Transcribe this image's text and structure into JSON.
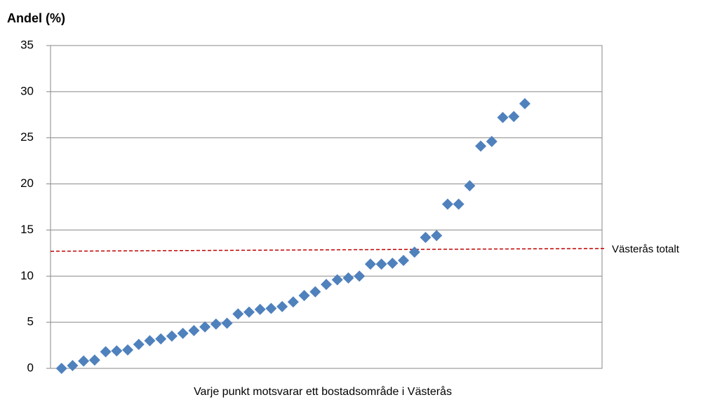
{
  "chart_data": {
    "type": "scatter",
    "title": "Andel (%)",
    "x_label": "Varje punkt motsvarar ett bostadsområde i Västerås",
    "values": [
      0.0,
      0.3,
      0.8,
      0.9,
      1.8,
      1.9,
      2.0,
      2.6,
      3.0,
      3.2,
      3.5,
      3.8,
      4.1,
      4.5,
      4.8,
      4.9,
      5.9,
      6.1,
      6.4,
      6.5,
      6.7,
      7.2,
      7.9,
      8.3,
      9.1,
      9.6,
      9.8,
      10.0,
      11.3,
      11.3,
      11.4,
      11.7,
      12.6,
      14.2,
      14.4,
      17.8,
      17.8,
      19.8,
      24.1,
      24.6,
      27.2,
      27.3,
      28.7
    ],
    "color": "#4f81bd",
    "xlim": [
      0,
      50
    ],
    "ylim": [
      0,
      35
    ],
    "yticks": [
      0,
      5,
      10,
      15,
      20,
      25,
      30,
      35
    ],
    "grid": true,
    "reference_line": {
      "label": "Västerås totalt",
      "values": [
        12.7,
        13.0
      ],
      "color": "#c00000"
    }
  }
}
